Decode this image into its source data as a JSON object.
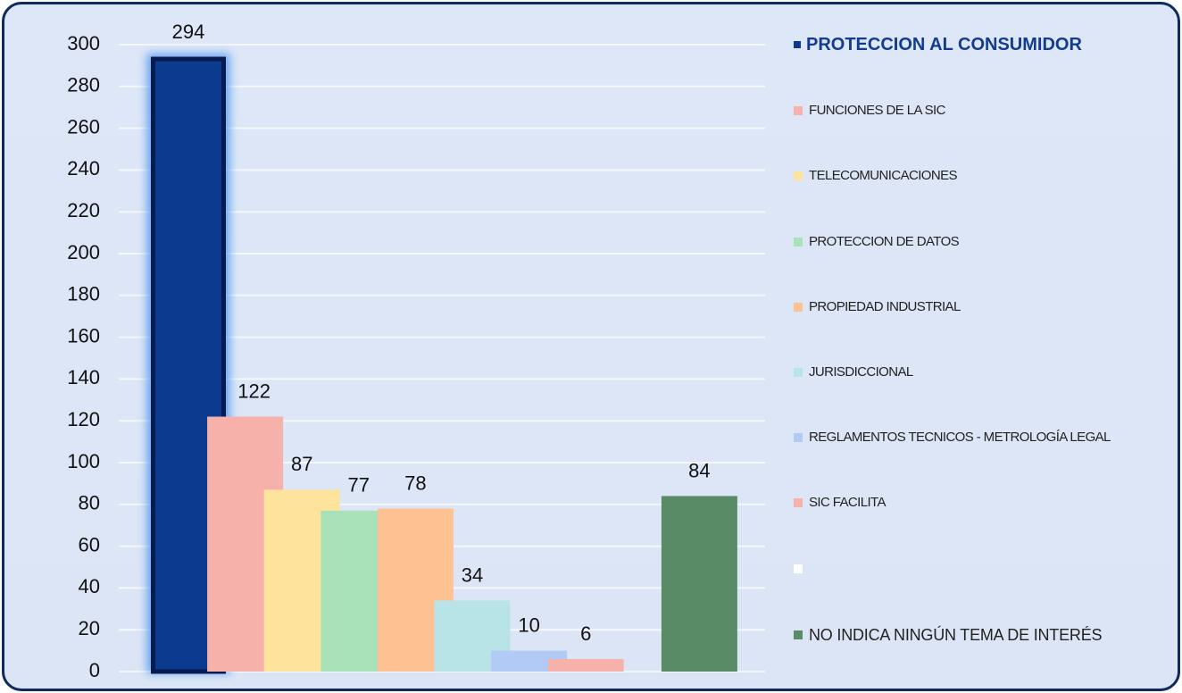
{
  "chart_data": {
    "type": "bar",
    "categories": [
      "PROTECCION AL CONSUMIDOR",
      "FUNCIONES DE LA SIC",
      "TELECOMUNICACIONES",
      "PROTECCION DE DATOS",
      "PROPIEDAD INDUSTRIAL",
      "JURISDICCIONAL",
      "REGLAMENTOS TECNICOS - METROLOGÍA LEGAL",
      "SIC FACILITA",
      null,
      "NO INDICA NINGÚN TEMA DE INTERÉS"
    ],
    "values": [
      294,
      122,
      87,
      77,
      78,
      34,
      10,
      6,
      null,
      84
    ],
    "colors": [
      "#0b3a8f",
      "#f5b1aa",
      "#fde39c",
      "#a9e2b8",
      "#fdc192",
      "#b8e4e7",
      "#b2caf6",
      "#f5b1aa",
      "#ffffff",
      "#598b67"
    ],
    "ylim": [
      0,
      300
    ],
    "yticks": [
      0,
      20,
      40,
      60,
      80,
      100,
      120,
      140,
      160,
      180,
      200,
      220,
      240,
      260,
      280,
      300
    ],
    "grid": true,
    "legend": "right"
  }
}
